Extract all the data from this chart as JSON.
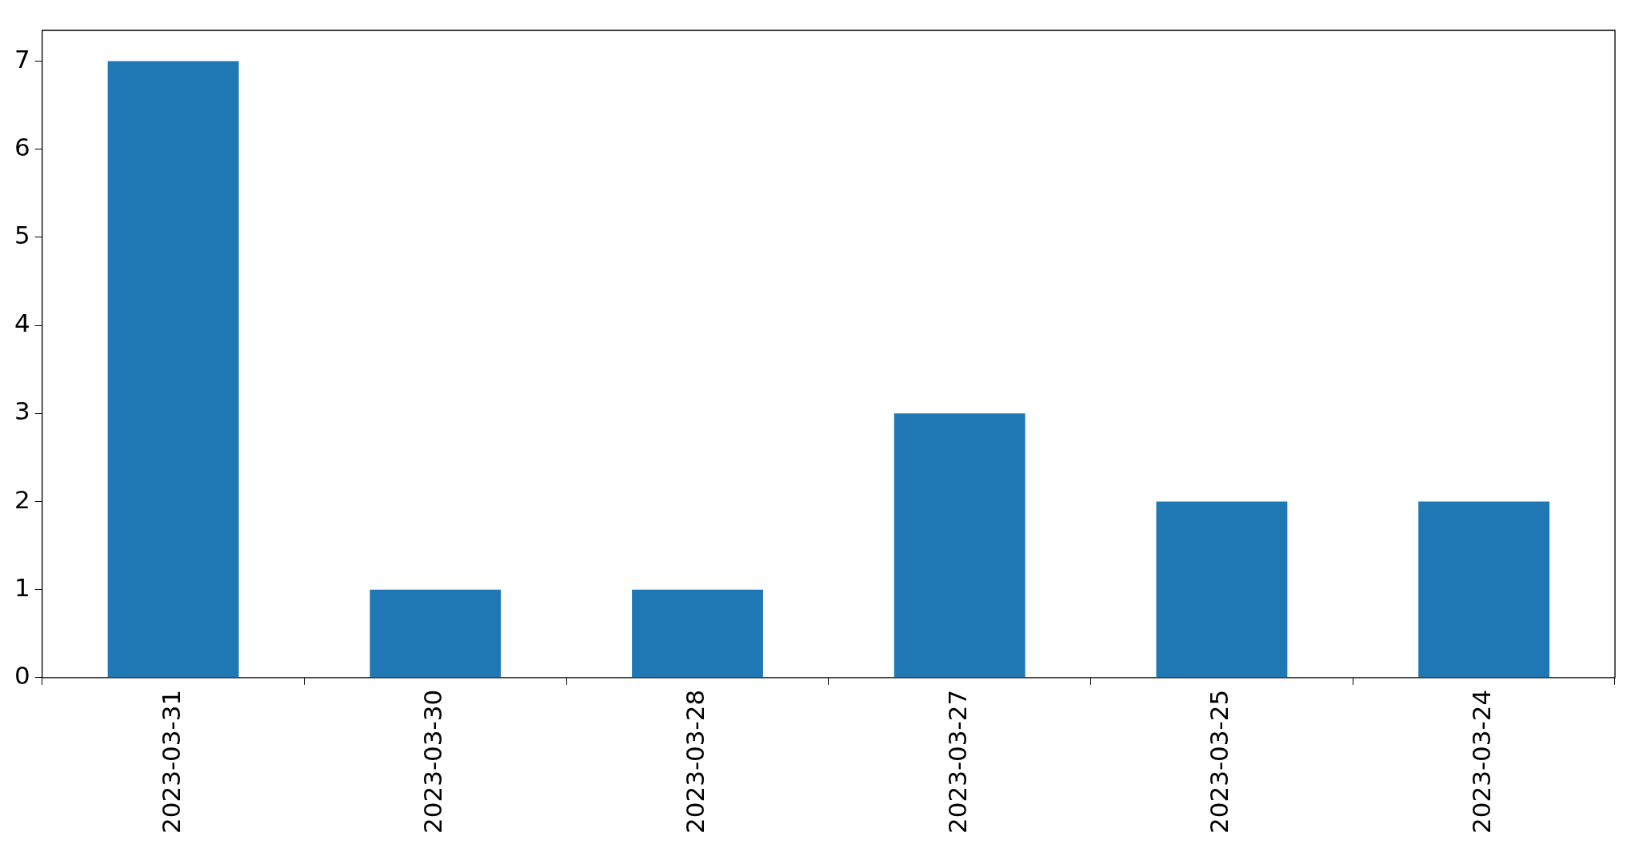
{
  "chart_data": {
    "type": "bar",
    "categories": [
      "2023-03-31",
      "2023-03-30",
      "2023-03-28",
      "2023-03-27",
      "2023-03-25",
      "2023-03-24"
    ],
    "values": [
      7,
      1,
      1,
      3,
      2,
      2
    ],
    "color": "#1f77b4",
    "ylim": [
      0,
      7.35
    ],
    "yticks": [
      0,
      1,
      2,
      3,
      4,
      5,
      6,
      7
    ],
    "grid": false,
    "legend": false
  }
}
